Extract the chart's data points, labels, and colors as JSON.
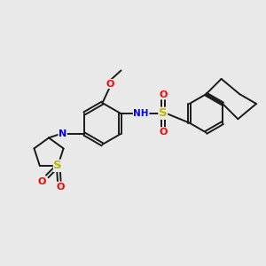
{
  "background_color": "#e9e9e9",
  "bond_color": "#1a1a1a",
  "atom_colors": {
    "N": "#0000ff",
    "O": "#ff0000",
    "S": "#b8b800",
    "C": "#1a1a1a",
    "H": "#555555"
  },
  "figsize": [
    3.0,
    3.0
  ],
  "dpi": 100
}
